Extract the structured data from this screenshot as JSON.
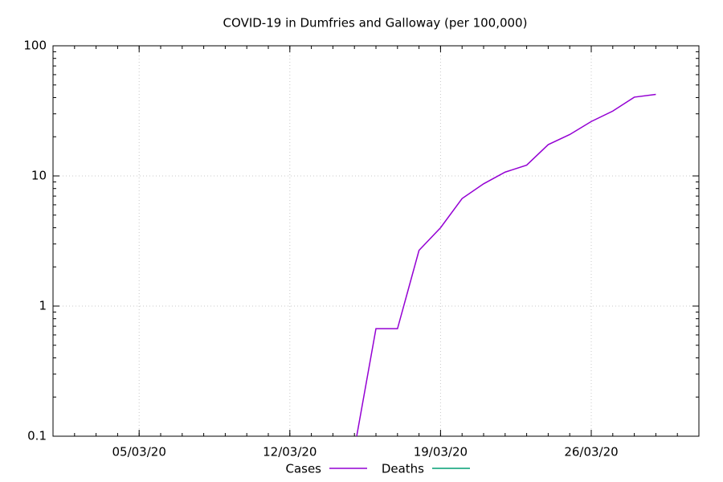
{
  "chart_data": {
    "type": "line",
    "title": "COVID-19 in Dumfries and Galloway (per 100,000)",
    "x": [
      "2020-03-15",
      "2020-03-16",
      "2020-03-17",
      "2020-03-18",
      "2020-03-19",
      "2020-03-20",
      "2020-03-21",
      "2020-03-22",
      "2020-03-23",
      "2020-03-24",
      "2020-03-25",
      "2020-03-26",
      "2020-03-27",
      "2020-03-28",
      "2020-03-29"
    ],
    "series": [
      {
        "name": "Cases",
        "color": "#9400d3",
        "values": [
          0.08,
          0.67,
          0.67,
          2.68,
          4.0,
          6.7,
          8.7,
          10.7,
          12.1,
          17.4,
          20.8,
          26.2,
          31.5,
          40.3,
          42.3
        ]
      },
      {
        "name": "Deaths",
        "color": "#009e73",
        "values": [
          null,
          null,
          null,
          null,
          null,
          null,
          null,
          null,
          null,
          null,
          null,
          null,
          null,
          null,
          null
        ]
      }
    ],
    "xlim": [
      "2020-03-01",
      "2020-03-31"
    ],
    "xticks": [
      {
        "value": "2020-03-05",
        "label": "05/03/20"
      },
      {
        "value": "2020-03-12",
        "label": "12/03/20"
      },
      {
        "value": "2020-03-19",
        "label": "19/03/20"
      },
      {
        "value": "2020-03-26",
        "label": "26/03/20"
      }
    ],
    "ylim": [
      0.1,
      100
    ],
    "yticks": [
      0.1,
      1,
      10,
      100
    ],
    "log_y": true,
    "grid": true,
    "legend": "bottom"
  }
}
